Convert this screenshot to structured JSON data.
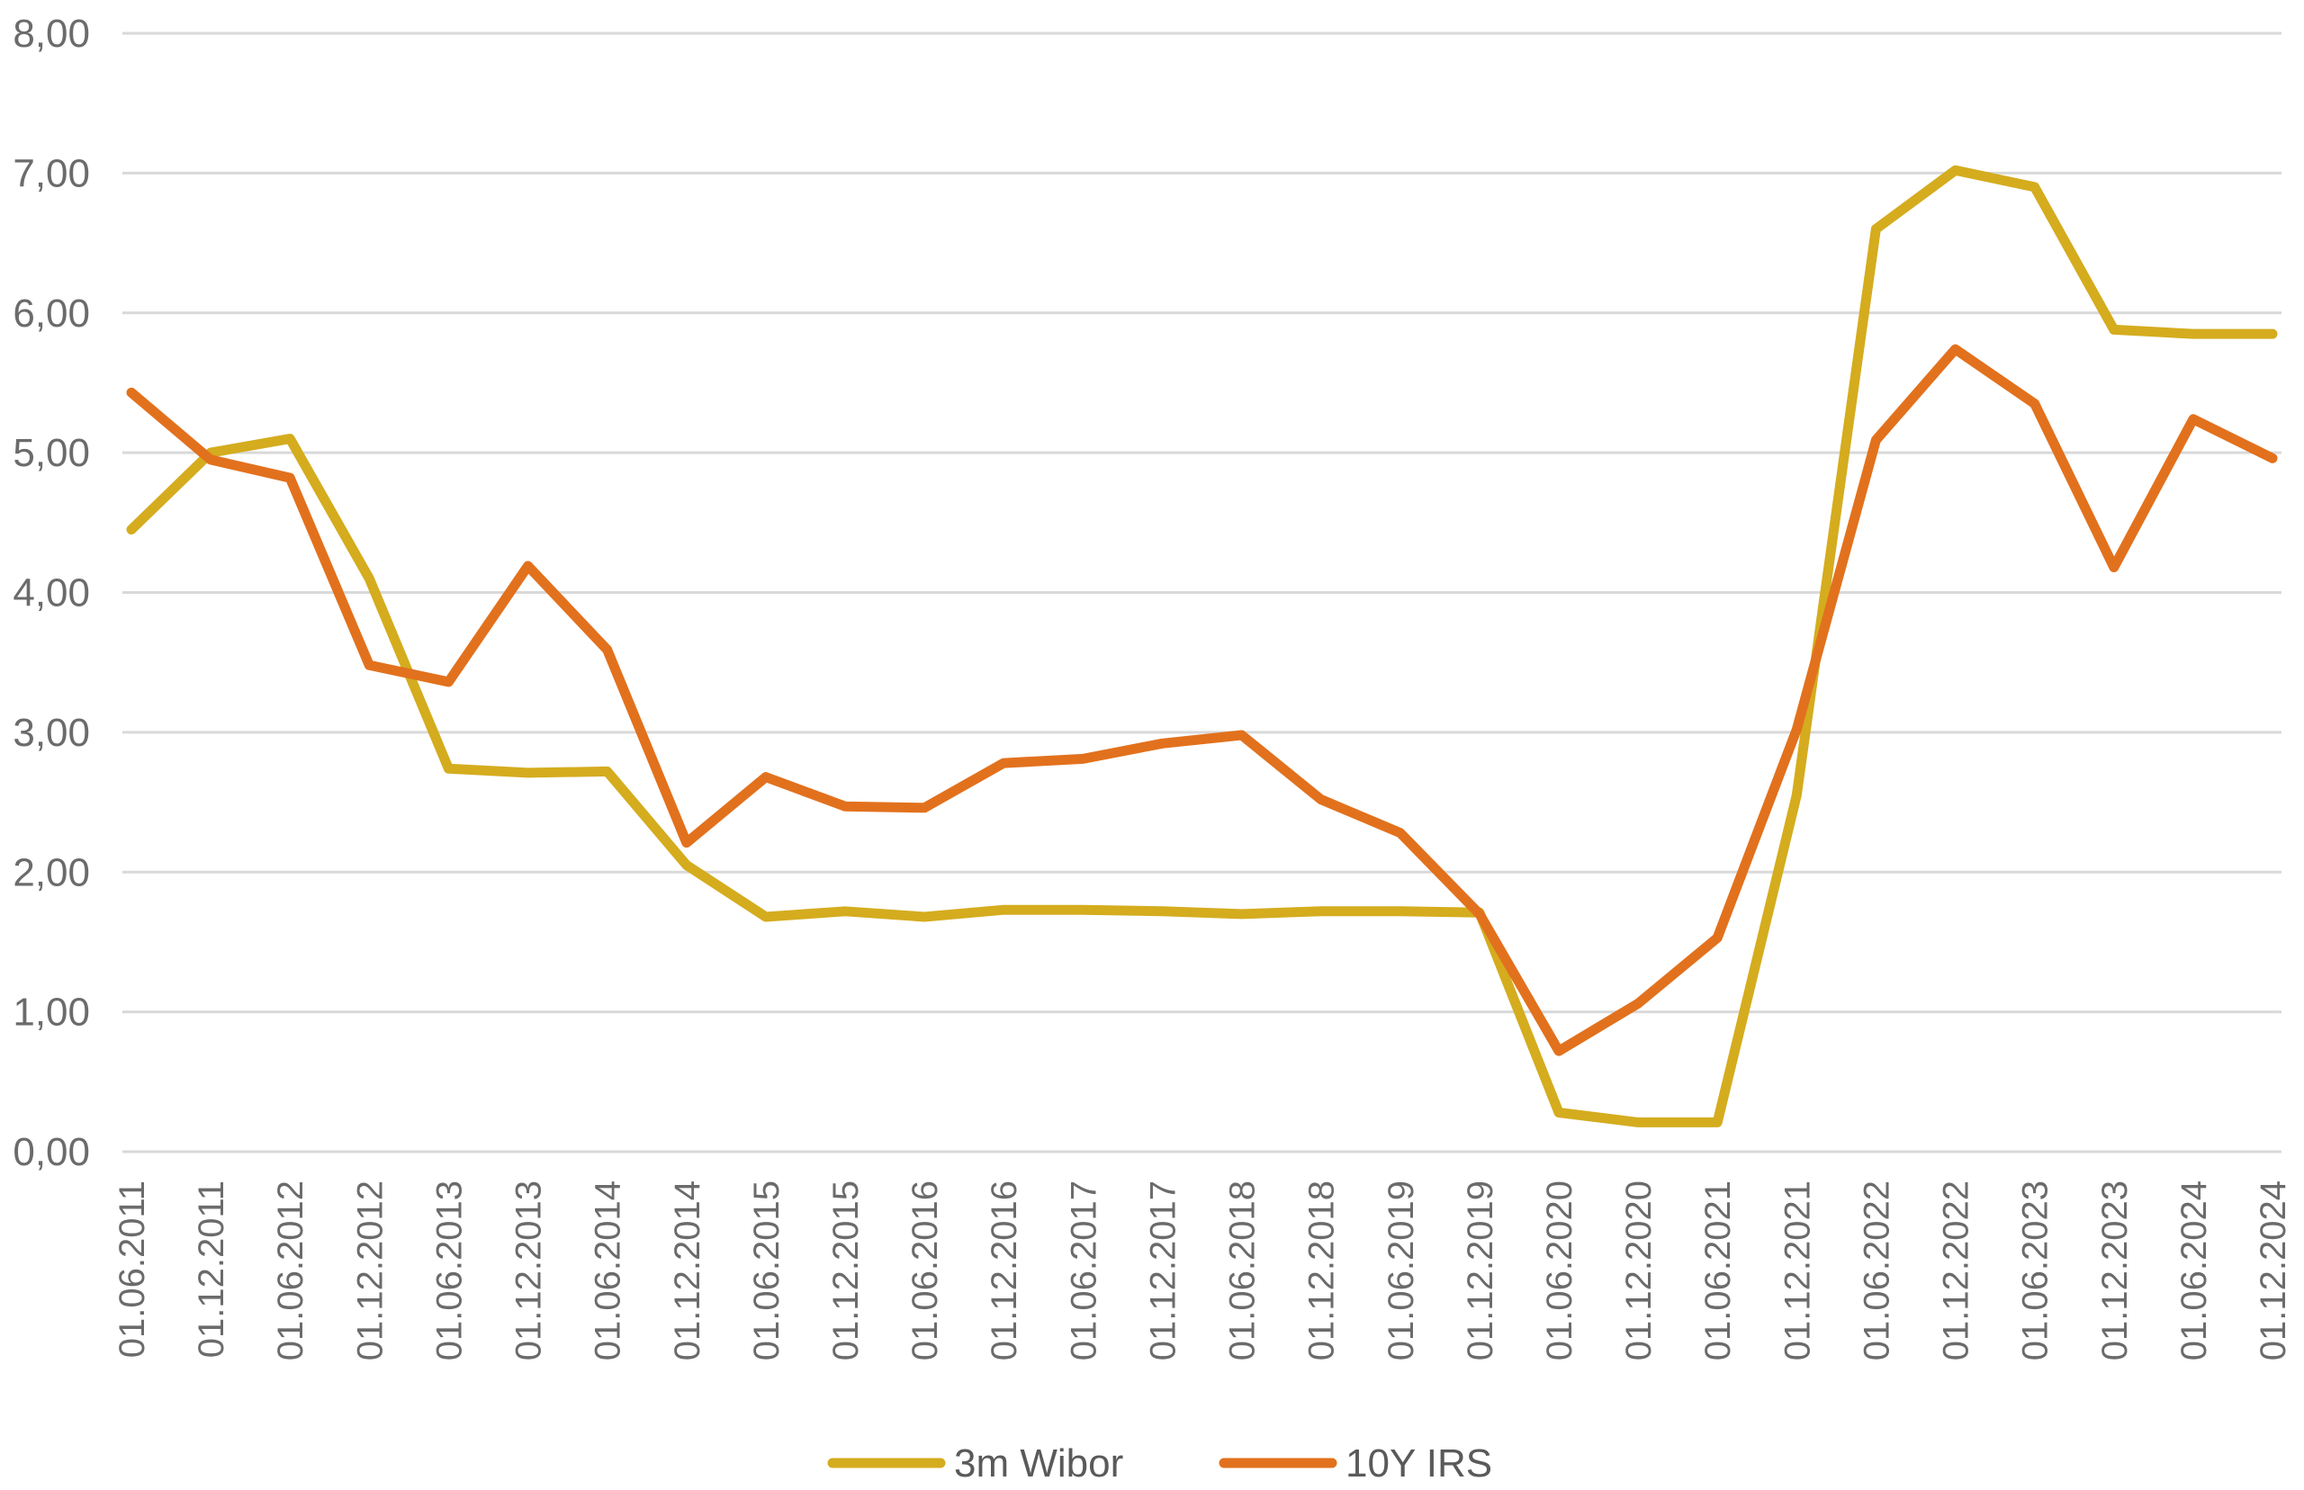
{
  "chart_data": {
    "type": "line",
    "title": "",
    "xlabel": "",
    "ylabel": "",
    "ylim": [
      0,
      8
    ],
    "yticks": [
      "0,00",
      "1,00",
      "2,00",
      "3,00",
      "4,00",
      "5,00",
      "6,00",
      "7,00",
      "8,00"
    ],
    "grid": true,
    "legend_position": "bottom-center",
    "categories": [
      "01.06.2011",
      "01.12.2011",
      "01.06.2012",
      "01.12.2012",
      "01.06.2013",
      "01.12.2013",
      "01.06.2014",
      "01.12.2014",
      "01.06.2015",
      "01.12.2015",
      "01.06.2016",
      "01.12.2016",
      "01.06.2017",
      "01.12.2017",
      "01.06.2018",
      "01.12.2018",
      "01.06.2019",
      "01.12.2019",
      "01.06.2020",
      "01.12.2020",
      "01.06.2021",
      "01.12.2021",
      "01.06.2022",
      "01.12.2022",
      "01.06.2023",
      "01.12.2023",
      "01.06.2024",
      "01.12.2024"
    ],
    "series": [
      {
        "name": "3m Wibor",
        "color": "#D4AC1E",
        "values": [
          4.45,
          5.0,
          5.1,
          4.1,
          2.74,
          2.71,
          2.72,
          2.05,
          1.68,
          1.72,
          1.68,
          1.73,
          1.73,
          1.72,
          1.7,
          1.72,
          1.72,
          1.71,
          0.28,
          0.21,
          0.21,
          2.55,
          6.6,
          7.02,
          6.9,
          5.88,
          5.85,
          5.85
        ]
      },
      {
        "name": "10Y IRS",
        "color": "#E2711D",
        "values": [
          5.43,
          4.95,
          4.82,
          3.48,
          3.36,
          4.19,
          3.59,
          2.21,
          2.68,
          2.47,
          2.46,
          2.78,
          2.81,
          2.92,
          2.98,
          2.52,
          2.28,
          1.7,
          0.72,
          1.06,
          1.53,
          3.02,
          5.09,
          5.74,
          5.35,
          4.18,
          5.24,
          4.96
        ]
      }
    ]
  }
}
